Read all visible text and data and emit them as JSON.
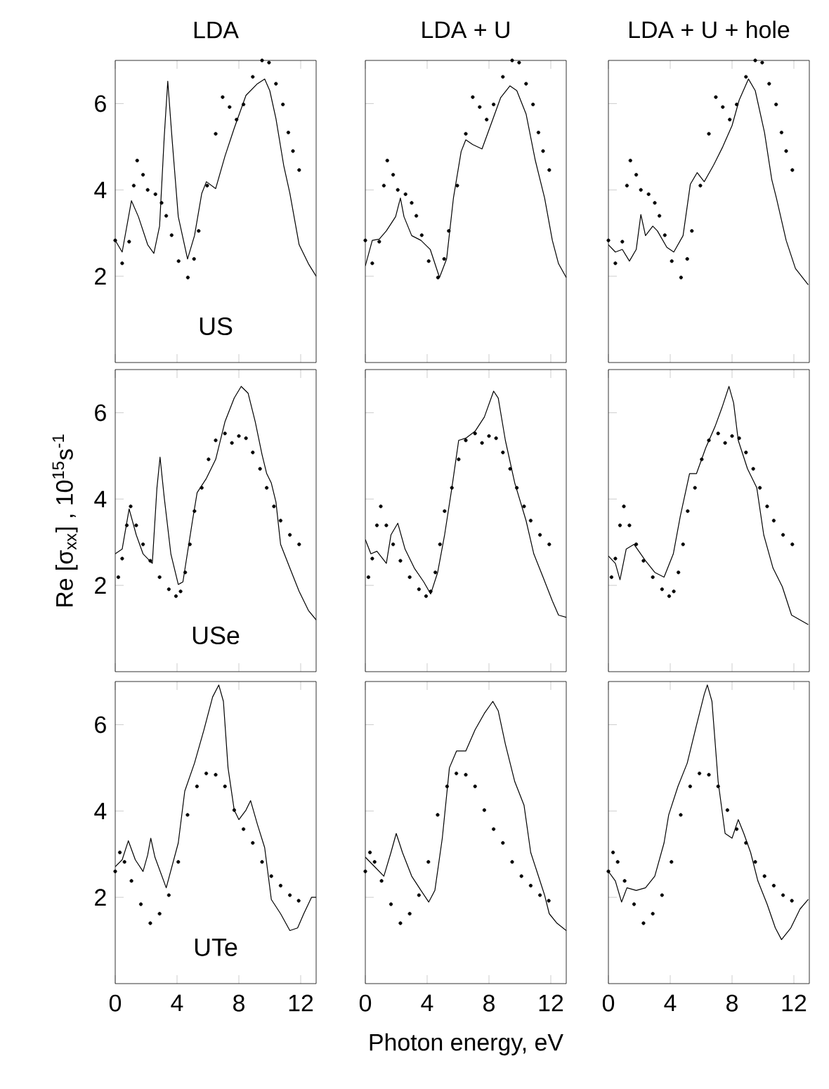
{
  "chart_data": [
    {
      "type": "line",
      "title": "LDA",
      "xlim": [
        0,
        13
      ],
      "ylim": [
        0,
        7
      ],
      "xticks": [
        0,
        4,
        8,
        12
      ],
      "yticks": [
        2,
        4,
        6
      ],
      "tick_labels": "y",
      "annotations": [
        "US"
      ],
      "series": [
        {
          "type": "line",
          "color": "#000000",
          "x": [
            0,
            0.45,
            1.05,
            1.5,
            2.1,
            2.5,
            2.87,
            3.17,
            3.4,
            3.67,
            4.08,
            4.68,
            5.13,
            5.6,
            5.9,
            6.5,
            7.1,
            7.7,
            8.46,
            9.2,
            9.67,
            10,
            10.4,
            10.9,
            11.3,
            11.9,
            12.5,
            13
          ],
          "values": [
            2.83,
            2.56,
            3.75,
            3.38,
            2.73,
            2.53,
            3.16,
            5.22,
            6.52,
            5.22,
            3.38,
            2.4,
            2.94,
            3.92,
            4.19,
            4.03,
            4.78,
            5.43,
            6.19,
            6.46,
            6.57,
            6.3,
            5.65,
            4.57,
            3.92,
            2.73,
            2.29,
            2.0
          ]
        },
        {
          "type": "scatter",
          "marker": "circle",
          "color": "#000000",
          "x": [
            0,
            0.45,
            0.9,
            1.2,
            1.42,
            1.8,
            2.1,
            2.6,
            3.0,
            3.3,
            3.65,
            4.1,
            4.7,
            5.1,
            5.4,
            5.95,
            6.5,
            6.95,
            7.4,
            7.85,
            8.3,
            8.9,
            9.5,
            9.95,
            10.4,
            10.85,
            11.2,
            11.5,
            11.9
          ],
          "values": [
            2.83,
            2.3,
            2.8,
            4.1,
            4.68,
            4.35,
            4.0,
            3.9,
            3.7,
            3.4,
            2.95,
            2.35,
            1.97,
            2.4,
            3.05,
            4.1,
            5.3,
            6.15,
            5.92,
            5.63,
            5.98,
            6.62,
            7.0,
            6.95,
            6.46,
            5.98,
            5.33,
            4.9,
            4.46
          ]
        }
      ]
    },
    {
      "type": "line",
      "title": "LDA + U",
      "xlim": [
        0,
        13
      ],
      "ylim": [
        0,
        7
      ],
      "xticks": [
        0,
        4,
        8,
        12
      ],
      "yticks": [
        2,
        4,
        6
      ],
      "tick_labels": false,
      "series": [
        {
          "type": "line",
          "color": "#000000",
          "x": [
            0,
            0.45,
            0.9,
            1.36,
            1.96,
            2.27,
            2.5,
            3.0,
            3.6,
            4.2,
            4.8,
            5.26,
            5.7,
            6.2,
            6.5,
            6.95,
            7.55,
            8.15,
            8.76,
            9.36,
            9.8,
            10.4,
            11,
            11.6,
            12.1,
            12.5,
            13
          ],
          "values": [
            2.24,
            2.83,
            2.86,
            3.05,
            3.38,
            3.81,
            3.38,
            2.94,
            2.83,
            2.62,
            1.97,
            2.4,
            3.81,
            4.89,
            5.16,
            5.05,
            4.95,
            5.54,
            6.14,
            6.41,
            6.3,
            5.76,
            4.68,
            3.81,
            2.83,
            2.29,
            1.97
          ]
        },
        {
          "type": "scatter",
          "marker": "circle",
          "color": "#000000",
          "x": [
            0,
            0.45,
            0.9,
            1.2,
            1.42,
            1.8,
            2.1,
            2.6,
            3.0,
            3.3,
            3.65,
            4.1,
            4.7,
            5.1,
            5.4,
            5.95,
            6.5,
            6.95,
            7.4,
            7.85,
            8.3,
            8.9,
            9.5,
            9.95,
            10.4,
            10.85,
            11.2,
            11.5,
            11.9
          ],
          "values": [
            2.83,
            2.3,
            2.8,
            4.1,
            4.68,
            4.35,
            4.0,
            3.9,
            3.7,
            3.4,
            2.95,
            2.35,
            1.97,
            2.4,
            3.05,
            4.1,
            5.3,
            6.15,
            5.92,
            5.63,
            5.98,
            6.62,
            7.0,
            6.95,
            6.46,
            5.98,
            5.33,
            4.9,
            4.46
          ]
        }
      ]
    },
    {
      "type": "line",
      "title": "LDA + U + hole",
      "xlim": [
        0,
        13
      ],
      "ylim": [
        0,
        7
      ],
      "xticks": [
        0,
        4,
        8,
        12
      ],
      "yticks": [
        2,
        4,
        6
      ],
      "tick_labels": false,
      "series": [
        {
          "type": "line",
          "color": "#000000",
          "x": [
            0,
            0.45,
            0.9,
            1.36,
            1.8,
            2.1,
            2.4,
            2.87,
            3.17,
            3.78,
            4.23,
            4.83,
            5.3,
            5.74,
            6.2,
            6.8,
            7.4,
            8.0,
            8.46,
            9.06,
            9.5,
            10.1,
            10.57,
            10.87,
            11.5,
            12.1,
            12.93
          ],
          "values": [
            2.73,
            2.56,
            2.62,
            2.35,
            2.62,
            3.43,
            2.94,
            3.16,
            3.05,
            2.67,
            2.56,
            2.94,
            4.13,
            4.4,
            4.19,
            4.57,
            5.0,
            5.49,
            6.08,
            6.57,
            6.3,
            5.33,
            4.24,
            3.81,
            2.83,
            2.18,
            1.8
          ]
        },
        {
          "type": "scatter",
          "marker": "circle",
          "color": "#000000",
          "x": [
            0,
            0.45,
            0.9,
            1.2,
            1.42,
            1.8,
            2.1,
            2.6,
            3.0,
            3.3,
            3.65,
            4.1,
            4.7,
            5.1,
            5.4,
            5.95,
            6.5,
            6.95,
            7.4,
            7.85,
            8.3,
            8.9,
            9.5,
            9.95,
            10.4,
            10.85,
            11.2,
            11.5,
            11.9
          ],
          "values": [
            2.83,
            2.3,
            2.8,
            4.1,
            4.68,
            4.35,
            4.0,
            3.9,
            3.7,
            3.4,
            2.95,
            2.35,
            1.97,
            2.4,
            3.05,
            4.1,
            5.3,
            6.15,
            5.92,
            5.63,
            5.98,
            6.62,
            7.0,
            6.95,
            6.46,
            5.98,
            5.33,
            4.9,
            4.46
          ]
        }
      ]
    },
    {
      "type": "line",
      "ylabel": "Re [σ$_{xx}$] , 10$^{15}$s$^{-1}$",
      "xlim": [
        0,
        13
      ],
      "ylim": [
        0,
        7
      ],
      "xticks": [
        0,
        4,
        8,
        12
      ],
      "yticks": [
        2,
        4,
        6
      ],
      "tick_labels": "y",
      "annotations": [
        "USe"
      ],
      "series": [
        {
          "type": "line",
          "color": "#000000",
          "x": [
            0,
            0.45,
            0.9,
            1.36,
            1.8,
            2.4,
            2.7,
            2.9,
            3.17,
            3.6,
            4.08,
            4.38,
            5.0,
            5.3,
            5.9,
            6.5,
            7.1,
            7.7,
            8.15,
            8.6,
            9.06,
            9.5,
            9.8,
            10.1,
            10.4,
            10.7,
            11.3,
            11.9,
            12.5,
            13
          ],
          "values": [
            2.73,
            2.84,
            3.77,
            3.17,
            2.73,
            2.51,
            4.26,
            4.97,
            4.04,
            2.73,
            2.02,
            2.08,
            3.5,
            4.15,
            4.48,
            4.92,
            5.79,
            6.34,
            6.61,
            6.45,
            5.79,
            5.03,
            4.59,
            4.37,
            3.93,
            2.95,
            2.4,
            1.86,
            1.42,
            1.2
          ]
        },
        {
          "type": "scatter",
          "marker": "circle",
          "color": "#000000",
          "x": [
            0.2,
            0.45,
            0.75,
            1.0,
            1.36,
            1.8,
            2.27,
            2.87,
            3.47,
            3.93,
            4.23,
            4.53,
            4.83,
            5.13,
            5.6,
            6.04,
            6.5,
            7.1,
            7.55,
            8.0,
            8.46,
            8.9,
            9.37,
            9.8,
            10.27,
            10.7,
            11.3,
            11.9
          ],
          "values": [
            2.19,
            2.62,
            3.39,
            3.83,
            3.39,
            2.95,
            2.57,
            2.19,
            1.91,
            1.75,
            1.86,
            2.3,
            2.95,
            3.72,
            4.26,
            4.92,
            5.36,
            5.52,
            5.3,
            5.46,
            5.41,
            5.08,
            4.7,
            4.26,
            3.83,
            3.5,
            3.17,
            2.95
          ]
        }
      ]
    },
    {
      "type": "line",
      "xlim": [
        0,
        13
      ],
      "ylim": [
        0,
        7
      ],
      "xticks": [
        0,
        4,
        8,
        12
      ],
      "yticks": [
        2,
        4,
        6
      ],
      "tick_labels": false,
      "series": [
        {
          "type": "line",
          "color": "#000000",
          "x": [
            0,
            0.36,
            0.75,
            1.36,
            1.66,
            2.1,
            2.57,
            3.17,
            3.78,
            4.23,
            4.68,
            5.13,
            5.6,
            6.04,
            6.5,
            7.1,
            7.7,
            8.3,
            8.6,
            9.06,
            9.67,
            10.4,
            10.9,
            11.5,
            12.1,
            12.5,
            13
          ],
          "values": [
            3.06,
            2.73,
            2.79,
            2.51,
            3.17,
            3.44,
            2.84,
            2.4,
            2.08,
            1.8,
            2.3,
            3.17,
            4.26,
            5.36,
            5.41,
            5.57,
            5.9,
            6.5,
            6.34,
            5.36,
            4.37,
            3.5,
            2.73,
            2.19,
            1.64,
            1.31,
            1.26
          ]
        },
        {
          "type": "scatter",
          "marker": "circle",
          "color": "#000000",
          "x": [
            0.2,
            0.45,
            0.75,
            1.0,
            1.36,
            1.8,
            2.27,
            2.87,
            3.47,
            3.93,
            4.23,
            4.53,
            4.83,
            5.13,
            5.6,
            6.04,
            6.5,
            7.1,
            7.55,
            8.0,
            8.46,
            8.9,
            9.37,
            9.8,
            10.27,
            10.7,
            11.3,
            11.9
          ],
          "values": [
            2.19,
            2.62,
            3.39,
            3.83,
            3.39,
            2.95,
            2.57,
            2.19,
            1.91,
            1.75,
            1.86,
            2.3,
            2.95,
            3.72,
            4.26,
            4.92,
            5.36,
            5.52,
            5.3,
            5.46,
            5.41,
            5.08,
            4.7,
            4.26,
            3.83,
            3.5,
            3.17,
            2.95
          ]
        }
      ]
    },
    {
      "type": "line",
      "xlim": [
        0,
        13
      ],
      "ylim": [
        0,
        7
      ],
      "xticks": [
        0,
        4,
        8,
        12
      ],
      "yticks": [
        2,
        4,
        6
      ],
      "tick_labels": false,
      "series": [
        {
          "type": "line",
          "color": "#000000",
          "x": [
            0,
            0.45,
            0.75,
            1.15,
            1.66,
            2.4,
            3.0,
            3.6,
            4.2,
            4.65,
            5.25,
            5.7,
            6.3,
            6.9,
            7.35,
            7.8,
            8.1,
            8.4,
            9.0,
            9.6,
            10.05,
            10.65,
            11.25,
            11.85,
            12.93
          ],
          "values": [
            2.68,
            2.51,
            2.13,
            2.84,
            2.95,
            2.57,
            2.3,
            2.19,
            2.73,
            3.6,
            4.59,
            4.59,
            5.19,
            5.68,
            6.12,
            6.61,
            6.23,
            5.36,
            4.7,
            4.26,
            3.17,
            2.4,
            1.97,
            1.31,
            1.09
          ]
        },
        {
          "type": "scatter",
          "marker": "circle",
          "color": "#000000",
          "x": [
            0.2,
            0.45,
            0.75,
            1.0,
            1.36,
            1.8,
            2.27,
            2.87,
            3.47,
            3.93,
            4.23,
            4.53,
            4.83,
            5.13,
            5.6,
            6.04,
            6.5,
            7.1,
            7.55,
            8.0,
            8.46,
            8.9,
            9.37,
            9.8,
            10.27,
            10.7,
            11.3,
            11.9
          ],
          "values": [
            2.19,
            2.62,
            3.39,
            3.83,
            3.39,
            2.95,
            2.57,
            2.19,
            1.91,
            1.75,
            1.86,
            2.3,
            2.95,
            3.72,
            4.26,
            4.92,
            5.36,
            5.52,
            5.3,
            5.46,
            5.41,
            5.08,
            4.7,
            4.26,
            3.83,
            3.5,
            3.17,
            2.95
          ]
        }
      ]
    },
    {
      "type": "line",
      "xlim": [
        0,
        13
      ],
      "ylim": [
        0,
        7
      ],
      "xticks": [
        0,
        4,
        8,
        12
      ],
      "yticks": [
        2,
        4,
        6
      ],
      "annotations": [
        "UTe"
      ],
      "series": [
        {
          "type": "line",
          "color": "#000000",
          "x": [
            0,
            0.45,
            0.85,
            1.3,
            1.8,
            2.1,
            2.3,
            2.57,
            3.3,
            4.08,
            4.5,
            5.13,
            5.74,
            6.3,
            6.7,
            7.0,
            7.3,
            7.7,
            8.0,
            8.46,
            8.76,
            9.2,
            9.67,
            10.1,
            10.7,
            11.3,
            11.8,
            12.2,
            12.7,
            13
          ],
          "values": [
            2.71,
            2.87,
            3.31,
            2.87,
            2.6,
            2.98,
            3.37,
            2.93,
            2.22,
            3.26,
            4.46,
            5.11,
            5.88,
            6.64,
            6.92,
            6.54,
            5.0,
            4.02,
            3.8,
            4.02,
            4.24,
            3.69,
            3.15,
            1.95,
            1.62,
            1.23,
            1.29,
            1.62,
            2.0,
            2.0
          ]
        },
        {
          "type": "scatter",
          "marker": "circle",
          "color": "#000000",
          "x": [
            0,
            0.3,
            0.6,
            1.05,
            1.66,
            2.27,
            2.87,
            3.47,
            4.08,
            4.68,
            5.29,
            5.89,
            6.5,
            7.1,
            7.7,
            8.3,
            8.9,
            9.5,
            10.1,
            10.7,
            11.3,
            11.87
          ],
          "values": [
            2.6,
            3.04,
            2.82,
            2.38,
            1.84,
            1.4,
            1.62,
            2.05,
            2.82,
            3.91,
            4.57,
            4.87,
            4.84,
            4.57,
            4.02,
            3.58,
            3.26,
            2.82,
            2.49,
            2.27,
            2.05,
            1.92
          ]
        }
      ]
    },
    {
      "type": "line",
      "xlabel": "Photon energy, eV",
      "xlim": [
        0,
        13
      ],
      "ylim": [
        0,
        7
      ],
      "xticks": [
        0,
        4,
        8,
        12
      ],
      "yticks": [
        2,
        4,
        6
      ],
      "tick_labels": "x",
      "series": [
        {
          "type": "line",
          "color": "#000000",
          "x": [
            0,
            0.6,
            1.2,
            1.66,
            2.0,
            2.4,
            3.0,
            3.6,
            4.1,
            4.5,
            4.98,
            5.44,
            5.9,
            6.5,
            7.1,
            7.7,
            8.25,
            8.6,
            9.06,
            9.67,
            10.27,
            10.7,
            11.2,
            11.6,
            11.9,
            12.4,
            13
          ],
          "values": [
            2.93,
            2.71,
            2.49,
            3.04,
            3.48,
            3.04,
            2.49,
            2.16,
            1.89,
            2.16,
            3.37,
            5.0,
            5.39,
            5.39,
            5.88,
            6.26,
            6.54,
            6.32,
            5.55,
            4.68,
            4.13,
            3.04,
            2.49,
            2.05,
            1.62,
            1.4,
            1.23
          ]
        },
        {
          "type": "scatter",
          "marker": "circle",
          "color": "#000000",
          "x": [
            0,
            0.3,
            0.6,
            1.05,
            1.66,
            2.27,
            2.87,
            3.47,
            4.08,
            4.68,
            5.29,
            5.89,
            6.5,
            7.1,
            7.7,
            8.3,
            8.9,
            9.5,
            10.1,
            10.7,
            11.3,
            11.87
          ],
          "values": [
            2.6,
            3.04,
            2.82,
            2.38,
            1.84,
            1.4,
            1.62,
            2.05,
            2.82,
            3.91,
            4.57,
            4.87,
            4.84,
            4.57,
            4.02,
            3.58,
            3.26,
            2.82,
            2.49,
            2.27,
            2.05,
            1.92
          ]
        }
      ]
    },
    {
      "type": "line",
      "xlim": [
        0,
        13
      ],
      "ylim": [
        0,
        7
      ],
      "xticks": [
        0,
        4,
        8,
        12
      ],
      "yticks": [
        2,
        4,
        6
      ],
      "tick_labels": "x",
      "series": [
        {
          "type": "line",
          "color": "#000000",
          "x": [
            0,
            0.45,
            0.85,
            1.2,
            1.8,
            2.4,
            3.0,
            3.6,
            3.9,
            4.5,
            5.1,
            5.7,
            6.2,
            6.4,
            6.7,
            7.1,
            7.55,
            8.0,
            8.4,
            8.76,
            9.2,
            9.67,
            10.27,
            10.8,
            11.2,
            11.8,
            12.4,
            12.93
          ],
          "values": [
            2.6,
            2.38,
            1.89,
            2.22,
            2.16,
            2.22,
            2.49,
            3.26,
            3.91,
            4.57,
            5.11,
            5.99,
            6.7,
            6.92,
            6.54,
            4.68,
            3.48,
            3.37,
            3.8,
            3.48,
            3.04,
            2.38,
            1.84,
            1.29,
            1.02,
            1.29,
            1.73,
            1.95
          ]
        },
        {
          "type": "scatter",
          "marker": "circle",
          "color": "#000000",
          "x": [
            0,
            0.3,
            0.6,
            1.05,
            1.66,
            2.27,
            2.87,
            3.47,
            4.08,
            4.68,
            5.29,
            5.89,
            6.5,
            7.1,
            7.7,
            8.3,
            8.9,
            9.5,
            10.1,
            10.7,
            11.3,
            11.87
          ],
          "values": [
            2.6,
            3.04,
            2.82,
            2.38,
            1.84,
            1.4,
            1.62,
            2.05,
            2.82,
            3.91,
            4.57,
            4.87,
            4.84,
            4.57,
            4.02,
            3.58,
            3.26,
            2.82,
            2.49,
            2.27,
            2.05,
            1.92
          ]
        }
      ]
    }
  ]
}
